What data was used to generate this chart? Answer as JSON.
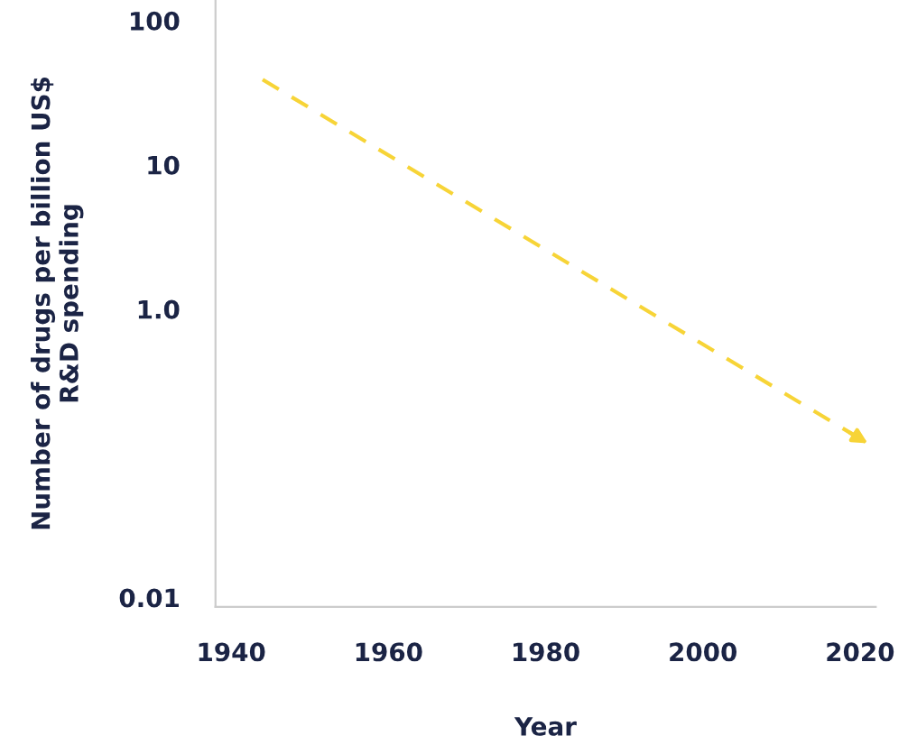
{
  "chart_data": {
    "type": "line",
    "xlabel": "Year",
    "ylabel": "Number of drugs per billion US$\nR&D spending",
    "log": "y",
    "x": [
      1944,
      2021
    ],
    "series": [
      {
        "color": "#f7d437",
        "values": [
          39,
          0.117
        ]
      }
    ],
    "line_style": "dashed",
    "marker": "none",
    "grid": false,
    "xlim": [
      1938,
      2022
    ],
    "xticks": [
      1940,
      1960,
      1980,
      2000,
      2020
    ],
    "ylim": [
      0.0086,
      139
    ],
    "yticks": [
      100,
      10,
      {
        "value": 1,
        "label": "1.0"
      },
      0.01
    ]
  }
}
